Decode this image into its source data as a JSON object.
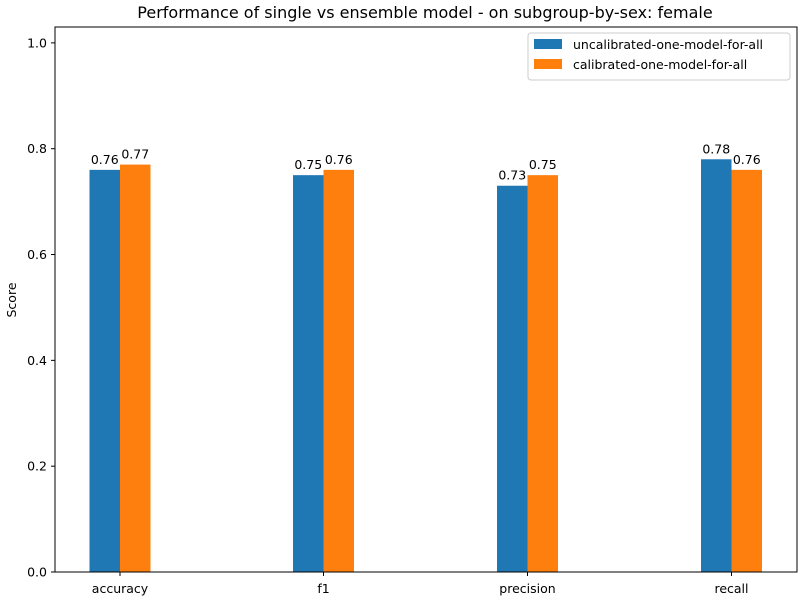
{
  "chart_data": {
    "type": "bar",
    "title": "Performance of single vs ensemble model - on subgroup-by-sex: female",
    "xlabel": "",
    "ylabel": "Score",
    "categories": [
      "accuracy",
      "f1",
      "precision",
      "recall"
    ],
    "series": [
      {
        "name": "uncalibrated-one-model-for-all",
        "color": "#1f77b4",
        "values": [
          0.76,
          0.75,
          0.73,
          0.78
        ],
        "labels": [
          "0.76",
          "0.75",
          "0.73",
          "0.78"
        ]
      },
      {
        "name": "calibrated-one-model-for-all",
        "color": "#ff7f0e",
        "values": [
          0.77,
          0.76,
          0.75,
          0.76
        ],
        "labels": [
          "0.77",
          "0.76",
          "0.75",
          "0.76"
        ]
      }
    ],
    "ylim": [
      0,
      1.03
    ],
    "yticks": [
      "0.0",
      "0.2",
      "0.4",
      "0.6",
      "0.8",
      "1.0"
    ],
    "grid": false,
    "legend_position": "top-right"
  }
}
